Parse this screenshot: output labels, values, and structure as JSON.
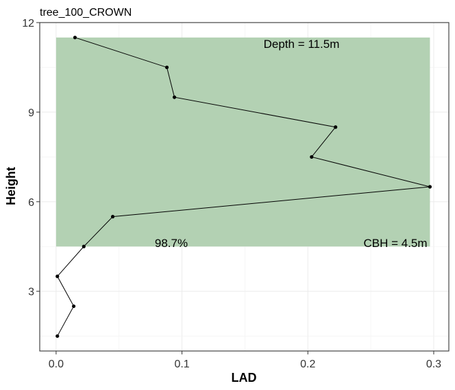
{
  "chart_data": {
    "type": "line",
    "title": "tree_100_CROWN",
    "xlabel": "LAD",
    "ylabel": "Height",
    "xlim": [
      -0.013,
      0.312
    ],
    "ylim": [
      1.0,
      12.0
    ],
    "x_ticks": [
      0.0,
      0.1,
      0.2,
      0.3
    ],
    "x_tick_labels": [
      "0.0",
      "0.1",
      "0.2",
      "0.3"
    ],
    "y_ticks": [
      3,
      6,
      9,
      12
    ],
    "y_tick_labels": [
      "3",
      "6",
      "9",
      "12"
    ],
    "grid": true,
    "series": [
      {
        "points": [
          {
            "x": 0.001,
            "y": 1.5
          },
          {
            "x": 0.014,
            "y": 2.5
          },
          {
            "x": 0.001,
            "y": 3.5
          },
          {
            "x": 0.022,
            "y": 4.5
          },
          {
            "x": 0.045,
            "y": 5.5
          },
          {
            "x": 0.297,
            "y": 6.5
          },
          {
            "x": 0.203,
            "y": 7.5
          },
          {
            "x": 0.222,
            "y": 8.5
          },
          {
            "x": 0.094,
            "y": 9.5
          },
          {
            "x": 0.088,
            "y": 10.5
          },
          {
            "x": 0.015,
            "y": 11.5
          }
        ]
      }
    ],
    "crown_region": {
      "x_range": [
        0.0,
        0.297
      ],
      "y_range": [
        4.5,
        11.5
      ],
      "color": "#b3d1b3"
    },
    "annotations": {
      "depth": "Depth = 11.5m",
      "percent": "98.7%",
      "cbh": "CBH = 4.5m"
    }
  }
}
